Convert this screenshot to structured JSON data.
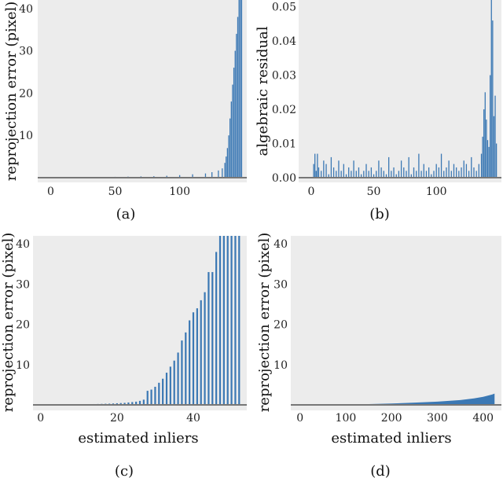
{
  "chart_data": [
    {
      "type": "bar",
      "caption": "(a)",
      "xlabel": "",
      "ylabel": "reprojection error (pixel)",
      "xlim": [
        -10,
        152
      ],
      "ylim": [
        0,
        42
      ],
      "xticks": [
        "0",
        "50",
        "100"
      ],
      "yticks": [
        "10",
        "20",
        "30",
        "40"
      ],
      "grid": false,
      "color": "#3b78b4",
      "x": [
        0,
        10,
        20,
        30,
        40,
        50,
        60,
        70,
        80,
        90,
        100,
        110,
        120,
        125,
        130,
        133,
        135,
        136,
        137,
        138,
        139,
        140,
        141,
        142,
        143,
        144,
        145,
        146,
        147,
        148
      ],
      "values": [
        0.05,
        0.08,
        0.1,
        0.12,
        0.15,
        0.2,
        0.25,
        0.3,
        0.35,
        0.45,
        0.6,
        0.8,
        1.0,
        1.3,
        1.7,
        2.2,
        3.5,
        5,
        7,
        10,
        14,
        18,
        22,
        26,
        30,
        34,
        38,
        42,
        42,
        42
      ]
    },
    {
      "type": "bar",
      "caption": "(b)",
      "xlabel": "",
      "ylabel": "algebraic residual",
      "xlim": [
        -10,
        152
      ],
      "ylim": [
        0,
        0.052
      ],
      "xticks": [
        "0",
        "50",
        "100"
      ],
      "yticks": [
        "0.00",
        "0.01",
        "0.02",
        "0.03",
        "0.04",
        "0.05"
      ],
      "grid": false,
      "color": "#3b78b4",
      "x": [
        2,
        3,
        4,
        5,
        6,
        8,
        10,
        12,
        14,
        16,
        18,
        20,
        22,
        24,
        26,
        28,
        30,
        32,
        34,
        36,
        38,
        40,
        42,
        44,
        46,
        48,
        50,
        52,
        54,
        56,
        58,
        60,
        62,
        64,
        66,
        68,
        70,
        72,
        74,
        76,
        78,
        80,
        82,
        84,
        86,
        88,
        90,
        92,
        94,
        96,
        98,
        100,
        102,
        104,
        106,
        108,
        110,
        112,
        114,
        116,
        118,
        120,
        122,
        124,
        126,
        128,
        130,
        132,
        134,
        136,
        137,
        138,
        139,
        140,
        141,
        142,
        143,
        144,
        145,
        146,
        147,
        148
      ],
      "values": [
        0.004,
        0.007,
        0.002,
        0.007,
        0.003,
        0.002,
        0.005,
        0.004,
        0.001,
        0.006,
        0.003,
        0.002,
        0.005,
        0.002,
        0.004,
        0.001,
        0.003,
        0.002,
        0.005,
        0.002,
        0.003,
        0.001,
        0.002,
        0.004,
        0.002,
        0.003,
        0.001,
        0.002,
        0.005,
        0.003,
        0.002,
        0.001,
        0.006,
        0.002,
        0.003,
        0.001,
        0.002,
        0.005,
        0.003,
        0.002,
        0.006,
        0.001,
        0.003,
        0.002,
        0.007,
        0.002,
        0.004,
        0.002,
        0.003,
        0.001,
        0.002,
        0.004,
        0.003,
        0.007,
        0.002,
        0.003,
        0.005,
        0.002,
        0.004,
        0.003,
        0.002,
        0.003,
        0.005,
        0.004,
        0.002,
        0.006,
        0.003,
        0.002,
        0.004,
        0.007,
        0.012,
        0.02,
        0.025,
        0.017,
        0.011,
        0.009,
        0.03,
        0.052,
        0.046,
        0.018,
        0.024,
        0.01
      ]
    },
    {
      "type": "bar",
      "caption": "(c)",
      "xlabel": "estimated inliers",
      "ylabel": "reprojection error (pixel)",
      "xlim": [
        -2,
        54
      ],
      "ylim": [
        0,
        42
      ],
      "xticks": [
        "0",
        "20",
        "40"
      ],
      "yticks": [
        "10",
        "20",
        "30",
        "40"
      ],
      "grid": false,
      "color": "#3b78b4",
      "x": [
        0,
        1,
        2,
        3,
        4,
        5,
        6,
        7,
        8,
        9,
        10,
        11,
        12,
        13,
        14,
        15,
        16,
        17,
        18,
        19,
        20,
        21,
        22,
        23,
        24,
        25,
        26,
        27,
        28,
        29,
        30,
        31,
        32,
        33,
        34,
        35,
        36,
        37,
        38,
        39,
        40,
        41,
        42,
        43,
        44,
        45,
        46,
        47,
        48,
        49,
        50,
        51,
        52
      ],
      "values": [
        0.05,
        0.05,
        0.05,
        0.06,
        0.07,
        0.08,
        0.09,
        0.1,
        0.11,
        0.12,
        0.13,
        0.14,
        0.16,
        0.18,
        0.2,
        0.22,
        0.25,
        0.28,
        0.3,
        0.35,
        0.4,
        0.45,
        0.5,
        0.6,
        0.7,
        0.8,
        1.0,
        1.3,
        3.5,
        3.8,
        4.5,
        5.5,
        6.5,
        8,
        9.5,
        11,
        13,
        16,
        18,
        21,
        23,
        24,
        26,
        28,
        33,
        33,
        38,
        42,
        42,
        42,
        42,
        42,
        42
      ]
    },
    {
      "type": "area",
      "caption": "(d)",
      "xlabel": "estimated inliers",
      "ylabel": "reprojection error (pixel)",
      "xlim": [
        -20,
        440
      ],
      "ylim": [
        0,
        42
      ],
      "xticks": [
        "0",
        "100",
        "200",
        "300",
        "400"
      ],
      "yticks": [
        "10",
        "20",
        "30",
        "40"
      ],
      "grid": false,
      "color": "#3b78b4",
      "x": [
        0,
        50,
        100,
        150,
        200,
        250,
        300,
        350,
        380,
        400,
        410,
        420,
        425
      ],
      "values": [
        0.05,
        0.08,
        0.12,
        0.2,
        0.35,
        0.55,
        0.8,
        1.2,
        1.6,
        2.0,
        2.3,
        2.6,
        2.8
      ]
    }
  ]
}
